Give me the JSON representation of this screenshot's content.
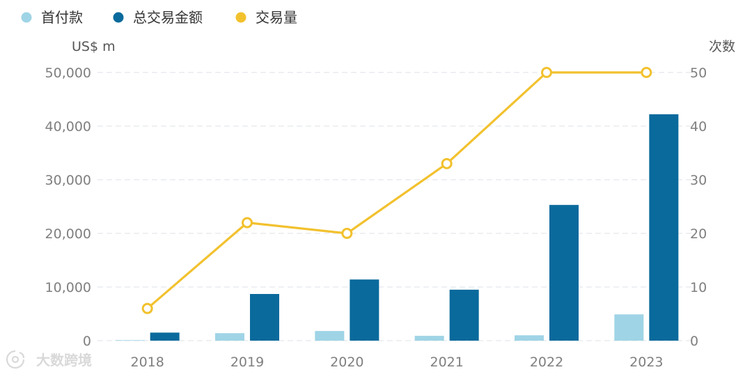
{
  "chart_data": {
    "type": "bar",
    "categories": [
      "2018",
      "2019",
      "2020",
      "2021",
      "2022",
      "2023"
    ],
    "series": [
      {
        "name": "首付款",
        "type": "bar",
        "axis": "left",
        "color": "#9fd4e6",
        "values": [
          100,
          1400,
          1800,
          900,
          1000,
          4900
        ]
      },
      {
        "name": "总交易金额",
        "type": "bar",
        "axis": "left",
        "color": "#0a6a9c",
        "values": [
          1500,
          8700,
          11400,
          9500,
          25300,
          42200
        ]
      },
      {
        "name": "交易量",
        "type": "line",
        "axis": "right",
        "color": "#f2c12e",
        "values": [
          6,
          22,
          20,
          33,
          50,
          50
        ]
      }
    ],
    "y_left": {
      "label": "US$ m",
      "min": 0,
      "max": 50000,
      "ticks": [
        "0",
        "10,000",
        "20,000",
        "30,000",
        "40,000",
        "50,000"
      ]
    },
    "y_right": {
      "label": "次数",
      "min": 0,
      "max": 50,
      "ticks": [
        "0",
        "10",
        "20",
        "30",
        "40",
        "50"
      ]
    },
    "grid": true,
    "legend": "top-left"
  },
  "watermark": {
    "text": "大数跨境",
    "icon": "brand-logo-icon"
  }
}
